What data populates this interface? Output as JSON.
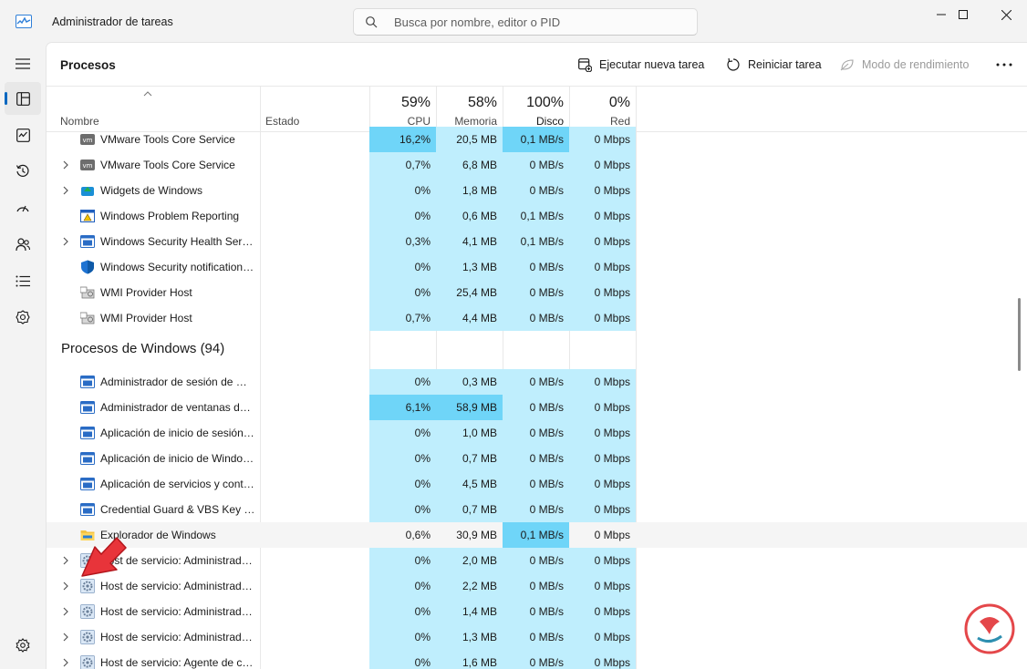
{
  "window": {
    "title": "Administrador de tareas",
    "search_placeholder": "Busca por nombre, editor o PID"
  },
  "toolbar": {
    "page_title": "Procesos",
    "run_new_task": "Ejecutar nueva tarea",
    "restart_task": "Reiniciar tarea",
    "efficiency_mode": "Modo de rendimiento"
  },
  "columns": {
    "name": "Nombre",
    "status": "Estado",
    "cpu": {
      "percent": "59%",
      "label": "CPU"
    },
    "memory": {
      "percent": "58%",
      "label": "Memoria"
    },
    "disk": {
      "percent": "100%",
      "label": "Disco"
    },
    "network": {
      "percent": "0%",
      "label": "Red"
    }
  },
  "rows_top": [
    {
      "name": "VMware Tools Core Service",
      "icon": "vmware-icon",
      "expandable": false,
      "cpu": "16,2%",
      "mem": "20,5 MB",
      "disk": "0,1 MB/s",
      "net": "0 Mbps",
      "cpu_heat": 1,
      "mem_heat": 0,
      "disk_heat": 1,
      "net_heat": 0
    },
    {
      "name": "VMware Tools Core Service",
      "icon": "vmware-icon",
      "expandable": true,
      "cpu": "0,7%",
      "mem": "6,8 MB",
      "disk": "0 MB/s",
      "net": "0 Mbps",
      "cpu_heat": 0,
      "mem_heat": 0,
      "disk_heat": 0,
      "net_heat": 0
    },
    {
      "name": "Widgets de Windows",
      "icon": "widgets-icon",
      "expandable": true,
      "cpu": "0%",
      "mem": "1,8 MB",
      "disk": "0 MB/s",
      "net": "0 Mbps",
      "cpu_heat": 0,
      "mem_heat": 0,
      "disk_heat": 0,
      "net_heat": 0
    },
    {
      "name": "Windows Problem Reporting",
      "icon": "problem-reporting-icon",
      "expandable": false,
      "cpu": "0%",
      "mem": "0,6 MB",
      "disk": "0,1 MB/s",
      "net": "0 Mbps",
      "cpu_heat": 0,
      "mem_heat": 0,
      "disk_heat": 0,
      "net_heat": 0
    },
    {
      "name": "Windows Security Health Service",
      "icon": "app-window-icon",
      "expandable": true,
      "cpu": "0,3%",
      "mem": "4,1 MB",
      "disk": "0,1 MB/s",
      "net": "0 Mbps",
      "cpu_heat": 0,
      "mem_heat": 0,
      "disk_heat": 0,
      "net_heat": 0
    },
    {
      "name": "Windows Security notification icon",
      "icon": "shield-icon",
      "expandable": false,
      "cpu": "0%",
      "mem": "1,3 MB",
      "disk": "0 MB/s",
      "net": "0 Mbps",
      "cpu_heat": 0,
      "mem_heat": 0,
      "disk_heat": 0,
      "net_heat": 0
    },
    {
      "name": "WMI Provider Host",
      "icon": "wmi-host-icon",
      "expandable": false,
      "cpu": "0%",
      "mem": "25,4 MB",
      "disk": "0 MB/s",
      "net": "0 Mbps",
      "cpu_heat": 0,
      "mem_heat": 0,
      "disk_heat": 0,
      "net_heat": 0
    },
    {
      "name": "WMI Provider Host",
      "icon": "wmi-host-icon",
      "expandable": false,
      "cpu": "0,7%",
      "mem": "4,4 MB",
      "disk": "0 MB/s",
      "net": "0 Mbps",
      "cpu_heat": 0,
      "mem_heat": 0,
      "disk_heat": 0,
      "net_heat": 0
    }
  ],
  "group": {
    "title": "Procesos de Windows (94)"
  },
  "rows_windows": [
    {
      "name": "Administrador de sesión de Windows",
      "icon": "app-window-icon",
      "expandable": false,
      "cpu": "0%",
      "mem": "0,3 MB",
      "disk": "0 MB/s",
      "net": "0 Mbps",
      "cpu_heat": 0,
      "mem_heat": 0,
      "disk_heat": 0,
      "net_heat": 0
    },
    {
      "name": "Administrador de ventanas del escritorio",
      "icon": "app-window-icon",
      "expandable": false,
      "cpu": "6,1%",
      "mem": "58,9 MB",
      "disk": "0 MB/s",
      "net": "0 Mbps",
      "cpu_heat": 1,
      "mem_heat": 1,
      "disk_heat": 0,
      "net_heat": 0
    },
    {
      "name": "Aplicación de inicio de sesión de Windows",
      "icon": "app-window-icon",
      "expandable": false,
      "cpu": "0%",
      "mem": "1,0 MB",
      "disk": "0 MB/s",
      "net": "0 Mbps",
      "cpu_heat": 0,
      "mem_heat": 0,
      "disk_heat": 0,
      "net_heat": 0
    },
    {
      "name": "Aplicación de inicio de Windows",
      "icon": "app-window-icon",
      "expandable": false,
      "cpu": "0%",
      "mem": "0,7 MB",
      "disk": "0 MB/s",
      "net": "0 Mbps",
      "cpu_heat": 0,
      "mem_heat": 0,
      "disk_heat": 0,
      "net_heat": 0
    },
    {
      "name": "Aplicación de servicios y controladores",
      "icon": "app-window-icon",
      "expandable": false,
      "cpu": "0%",
      "mem": "4,5 MB",
      "disk": "0 MB/s",
      "net": "0 Mbps",
      "cpu_heat": 0,
      "mem_heat": 0,
      "disk_heat": 0,
      "net_heat": 0
    },
    {
      "name": "Credential Guard & VBS Key Isolation",
      "icon": "app-window-icon",
      "expandable": false,
      "cpu": "0%",
      "mem": "0,7 MB",
      "disk": "0 MB/s",
      "net": "0 Mbps",
      "cpu_heat": 0,
      "mem_heat": 0,
      "disk_heat": 0,
      "net_heat": 0
    },
    {
      "name": "Explorador de Windows",
      "icon": "folder-icon",
      "expandable": false,
      "selected": true,
      "cpu": "0,6%",
      "mem": "30,9 MB",
      "disk": "0,1 MB/s",
      "net": "0 Mbps",
      "cpu_heat": -1,
      "mem_heat": -1,
      "disk_heat": 1,
      "net_heat": -1
    },
    {
      "name": "Host de servicio: Administrador de",
      "icon": "gear-service-icon",
      "expandable": true,
      "cpu": "0%",
      "mem": "2,0 MB",
      "disk": "0 MB/s",
      "net": "0 Mbps",
      "cpu_heat": 0,
      "mem_heat": 0,
      "disk_heat": 0,
      "net_heat": 0
    },
    {
      "name": "Host de servicio: Administrador de",
      "icon": "gear-service-icon",
      "expandable": true,
      "cpu": "0%",
      "mem": "2,2 MB",
      "disk": "0 MB/s",
      "net": "0 Mbps",
      "cpu_heat": 0,
      "mem_heat": 0,
      "disk_heat": 0,
      "net_heat": 0
    },
    {
      "name": "Host de servicio: Administrador de",
      "icon": "gear-service-icon",
      "expandable": true,
      "cpu": "0%",
      "mem": "1,4 MB",
      "disk": "0 MB/s",
      "net": "0 Mbps",
      "cpu_heat": 0,
      "mem_heat": 0,
      "disk_heat": 0,
      "net_heat": 0
    },
    {
      "name": "Host de servicio: Administrador de",
      "icon": "gear-service-icon",
      "expandable": true,
      "cpu": "0%",
      "mem": "1,3 MB",
      "disk": "0 MB/s",
      "net": "0 Mbps",
      "cpu_heat": 0,
      "mem_heat": 0,
      "disk_heat": 0,
      "net_heat": 0
    },
    {
      "name": "Host de servicio: Agente de conexión",
      "icon": "gear-service-icon",
      "expandable": true,
      "cpu": "0%",
      "mem": "1,6 MB",
      "disk": "0 MB/s",
      "net": "0 Mbps",
      "cpu_heat": 0,
      "mem_heat": 0,
      "disk_heat": 0,
      "net_heat": 0
    }
  ],
  "colors": {
    "heat_light": "#bfeefd",
    "heat_strong": "#6fd5f8",
    "accent": "#0067c0",
    "annotation_arrow": "#e8343a"
  }
}
